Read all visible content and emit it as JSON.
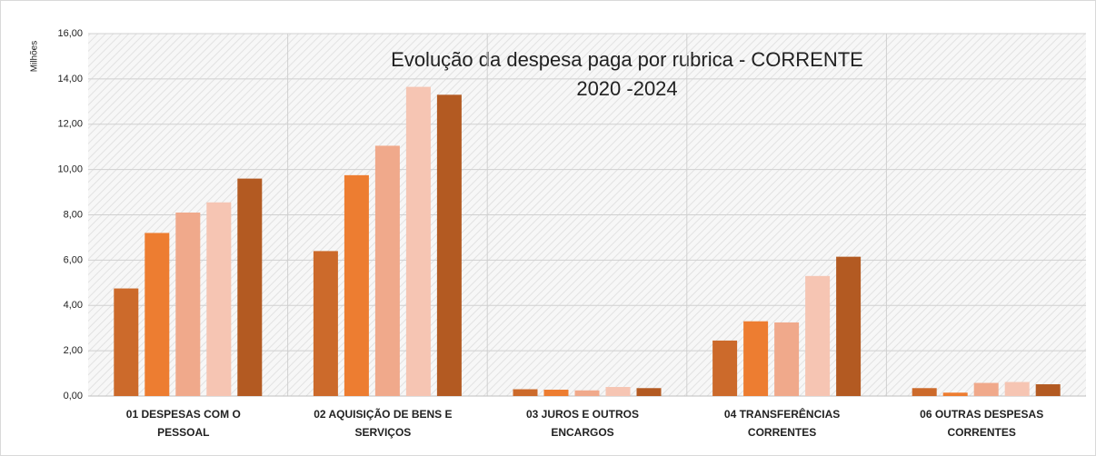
{
  "chart_data": {
    "type": "bar",
    "title": "Evolução da despesa paga por rubrica - CORRENTE",
    "subtitle": "2020 -2024",
    "y_label": "Milhões",
    "categories": [
      "01  DESPESAS COM O PESSOAL",
      "02  AQUISIÇÃO DE BENS E SERVIÇOS",
      "03  JUROS E OUTROS ENCARGOS",
      "04  TRANSFERÊNCIAS CORRENTES",
      "06  OUTRAS DESPESAS CORRENTES"
    ],
    "series": [
      {
        "color": "#cc6a2b",
        "values": [
          4.75,
          6.4,
          0.3,
          2.45,
          0.35
        ]
      },
      {
        "color": "#ed7d31",
        "values": [
          7.2,
          9.75,
          0.28,
          3.3,
          0.15
        ]
      },
      {
        "color": "#f0a98b",
        "values": [
          8.1,
          11.05,
          0.25,
          3.25,
          0.58
        ]
      },
      {
        "color": "#f6c5b3",
        "values": [
          8.55,
          13.65,
          0.4,
          5.3,
          0.62
        ]
      },
      {
        "color": "#b35a22",
        "values": [
          9.6,
          13.3,
          0.35,
          6.15,
          0.52
        ]
      }
    ],
    "ylim": [
      0,
      16
    ],
    "yticks": [
      {
        "value": 0,
        "label": "0,00"
      },
      {
        "value": 2,
        "label": "2,00"
      },
      {
        "value": 4,
        "label": "4,00"
      },
      {
        "value": 6,
        "label": "6,00"
      },
      {
        "value": 8,
        "label": "8,00"
      },
      {
        "value": 10,
        "label": "10,00"
      },
      {
        "value": 12,
        "label": "12,00"
      },
      {
        "value": 14,
        "label": "14,00"
      },
      {
        "value": 16,
        "label": "16,00"
      }
    ],
    "grid": true
  }
}
